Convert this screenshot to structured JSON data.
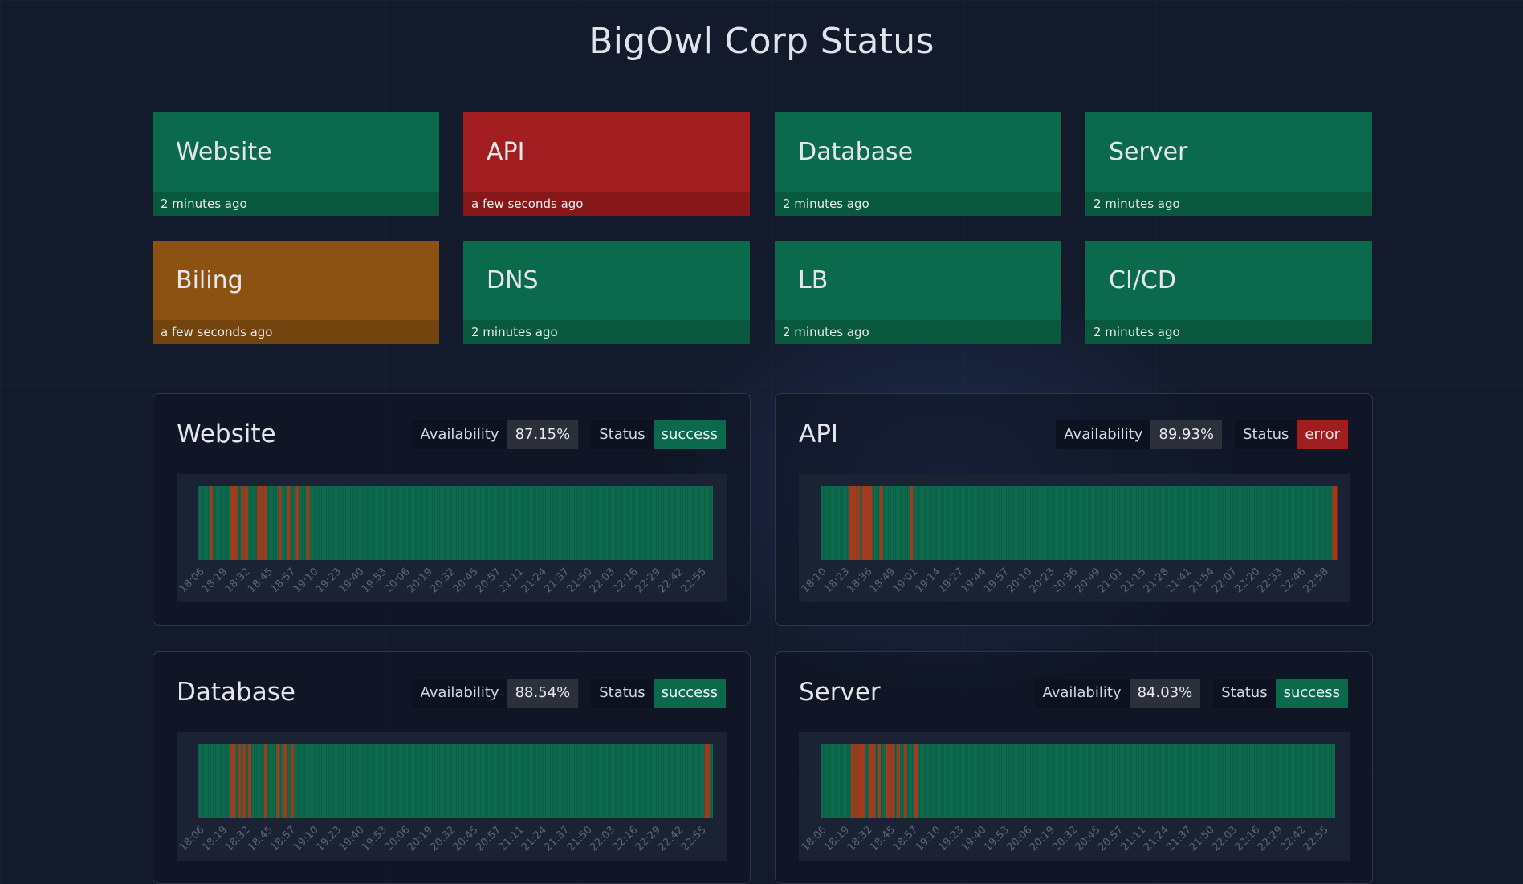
{
  "page": {
    "title": "BigOwl Corp Status"
  },
  "colors": {
    "success": "#0b6a4c",
    "error": "#a11d1f",
    "warning": "#8b5212",
    "bar_ok": "#0d6a4d",
    "bar_err": "#a43a1d"
  },
  "tiles": [
    {
      "name": "Website",
      "updated": "2 minutes ago",
      "state": "success"
    },
    {
      "name": "API",
      "updated": "a few seconds ago",
      "state": "error"
    },
    {
      "name": "Database",
      "updated": "2 minutes ago",
      "state": "success"
    },
    {
      "name": "Server",
      "updated": "2 minutes ago",
      "state": "success"
    },
    {
      "name": "Biling",
      "updated": "a few seconds ago",
      "state": "warning"
    },
    {
      "name": "DNS",
      "updated": "2 minutes ago",
      "state": "success"
    },
    {
      "name": "LB",
      "updated": "2 minutes ago",
      "state": "success"
    },
    {
      "name": "CI/CD",
      "updated": "2 minutes ago",
      "state": "success"
    }
  ],
  "panels": [
    {
      "title": "Website",
      "availability_label": "Availability",
      "availability": "87.15%",
      "status_label": "Status",
      "status": "success"
    },
    {
      "title": "API",
      "availability_label": "Availability",
      "availability": "89.93%",
      "status_label": "Status",
      "status": "error"
    },
    {
      "title": "Database",
      "availability_label": "Availability",
      "availability": "88.54%",
      "status_label": "Status",
      "status": "success"
    },
    {
      "title": "Server",
      "availability_label": "Availability",
      "availability": "84.03%",
      "status_label": "Status",
      "status": "success"
    }
  ],
  "chart_data": [
    {
      "type": "heatmap",
      "x_ticks": [
        "18:06",
        "18:19",
        "18:32",
        "18:45",
        "18:57",
        "19:10",
        "19:23",
        "19:40",
        "19:53",
        "20:06",
        "20:19",
        "20:32",
        "20:45",
        "20:57",
        "21:11",
        "21:24",
        "21:37",
        "21:50",
        "22:03",
        "22:16",
        "22:29",
        "22:42",
        "22:55"
      ],
      "x_range": [
        "18:06",
        "22:58"
      ],
      "failures": [
        "18:13",
        "18:25",
        "18:27",
        "18:31",
        "18:33",
        "18:40",
        "18:42",
        "18:44",
        "18:52",
        "18:57",
        "19:02",
        "19:08"
      ]
    },
    {
      "type": "heatmap",
      "x_ticks": [
        "18:10",
        "18:23",
        "18:36",
        "18:49",
        "19:01",
        "19:14",
        "19:27",
        "19:44",
        "19:57",
        "20:10",
        "20:23",
        "20:36",
        "20:49",
        "21:01",
        "21:15",
        "21:28",
        "21:41",
        "21:54",
        "22:07",
        "22:20",
        "22:33",
        "22:46",
        "22:58"
      ],
      "x_range": [
        "18:10",
        "23:00"
      ],
      "failures": [
        "18:27",
        "18:29",
        "18:31",
        "18:34",
        "18:35",
        "18:36",
        "18:38",
        "18:44",
        "19:01",
        "22:59",
        "23:00"
      ]
    },
    {
      "type": "heatmap",
      "x_ticks": [
        "18:06",
        "18:19",
        "18:32",
        "18:45",
        "18:57",
        "19:10",
        "19:23",
        "19:40",
        "19:53",
        "20:06",
        "20:19",
        "20:32",
        "20:45",
        "20:57",
        "21:11",
        "21:24",
        "21:37",
        "21:50",
        "22:03",
        "22:16",
        "22:29",
        "22:42",
        "22:55"
      ],
      "x_range": [
        "18:06",
        "22:58"
      ],
      "failures": [
        "18:25",
        "18:26",
        "18:29",
        "18:32",
        "18:35",
        "18:44",
        "18:51",
        "18:55",
        "18:59",
        "22:54",
        "22:55"
      ]
    },
    {
      "type": "heatmap",
      "x_ticks": [
        "18:06",
        "18:19",
        "18:32",
        "18:45",
        "18:57",
        "19:10",
        "19:23",
        "19:40",
        "19:53",
        "20:06",
        "20:19",
        "20:32",
        "20:45",
        "20:57",
        "21:11",
        "21:24",
        "21:37",
        "21:50",
        "22:03",
        "22:16",
        "22:29",
        "22:42",
        "22:55"
      ],
      "x_range": [
        "18:06",
        "22:58"
      ],
      "failures": [
        "18:24",
        "18:26",
        "18:28",
        "18:29",
        "18:30",
        "18:34",
        "18:35",
        "18:36",
        "18:39",
        "18:44",
        "18:45",
        "18:47",
        "18:50",
        "18:54",
        "19:00"
      ]
    }
  ]
}
